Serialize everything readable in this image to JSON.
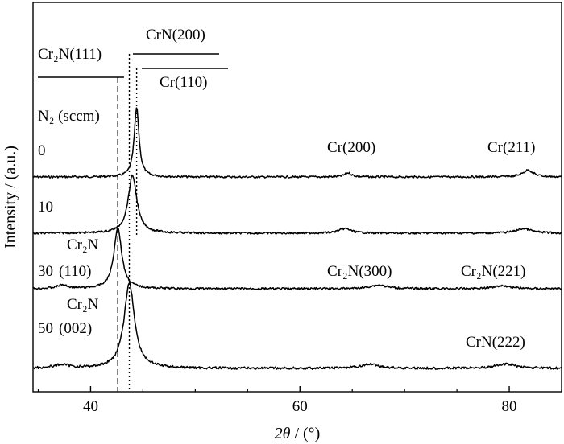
{
  "chart_data": {
    "type": "line",
    "xlabel_var": "2θ",
    "xlabel_unit": " / (°)",
    "ylabel": "Intensity / (a.u.)",
    "xlim": [
      34.5,
      85
    ],
    "x_ticks": [
      40,
      60,
      80
    ],
    "tick_labels": [
      "40",
      "60",
      "80"
    ],
    "legend_title": "N₂ (sccm)",
    "reference_lines": [
      {
        "name": "Cr2N(111)",
        "x": 42.6,
        "style": "dashed",
        "label": "Cr₂N(111)"
      },
      {
        "name": "CrN(200)",
        "x": 43.7,
        "style": "dotted",
        "label": "CrN(200)"
      },
      {
        "name": "Cr(110)",
        "x": 44.4,
        "style": "dotted",
        "label": "Cr(110)"
      }
    ],
    "series": [
      {
        "name": "0",
        "peaks": [
          {
            "x": 44.4,
            "h": 1.0,
            "w": 0.28
          },
          {
            "x": 64.6,
            "h": 0.06,
            "w": 0.4
          },
          {
            "x": 81.8,
            "h": 0.1,
            "w": 0.6
          }
        ]
      },
      {
        "name": "10",
        "peaks": [
          {
            "x": 44.0,
            "h": 1.0,
            "w": 0.5
          },
          {
            "x": 64.3,
            "h": 0.08,
            "w": 0.7
          },
          {
            "x": 81.4,
            "h": 0.08,
            "w": 0.9
          }
        ]
      },
      {
        "name": "30",
        "peaks": [
          {
            "x": 42.6,
            "h": 1.0,
            "w": 0.45
          },
          {
            "x": 37.3,
            "h": 0.06,
            "w": 0.6
          },
          {
            "x": 67.5,
            "h": 0.06,
            "w": 1.0
          },
          {
            "x": 79.3,
            "h": 0.05,
            "w": 1.0
          }
        ]
      },
      {
        "name": "50",
        "peaks": [
          {
            "x": 43.7,
            "h": 1.0,
            "w": 0.6
          },
          {
            "x": 37.2,
            "h": 0.04,
            "w": 0.9
          },
          {
            "x": 66.7,
            "h": 0.05,
            "w": 1.0
          },
          {
            "x": 79.7,
            "h": 0.05,
            "w": 1.2
          }
        ]
      }
    ],
    "annotations": [
      {
        "name": "cr-200-label",
        "text": "Cr(200)"
      },
      {
        "name": "cr-211-label",
        "text": "Cr(211)"
      },
      {
        "name": "cr2n-110-label-top",
        "text": "Cr₂N"
      },
      {
        "name": "cr2n-110-label-bottom",
        "text": "(110)"
      },
      {
        "name": "cr2n-300-label",
        "text": "Cr₂N(300)"
      },
      {
        "name": "cr2n-221-label",
        "text": "Cr₂N(221)"
      },
      {
        "name": "cr2n-002-label-top",
        "text": "Cr₂N"
      },
      {
        "name": "cr2n-002-label-bottom",
        "text": "(002)"
      },
      {
        "name": "crn-222-label",
        "text": "CrN(222)"
      }
    ]
  }
}
